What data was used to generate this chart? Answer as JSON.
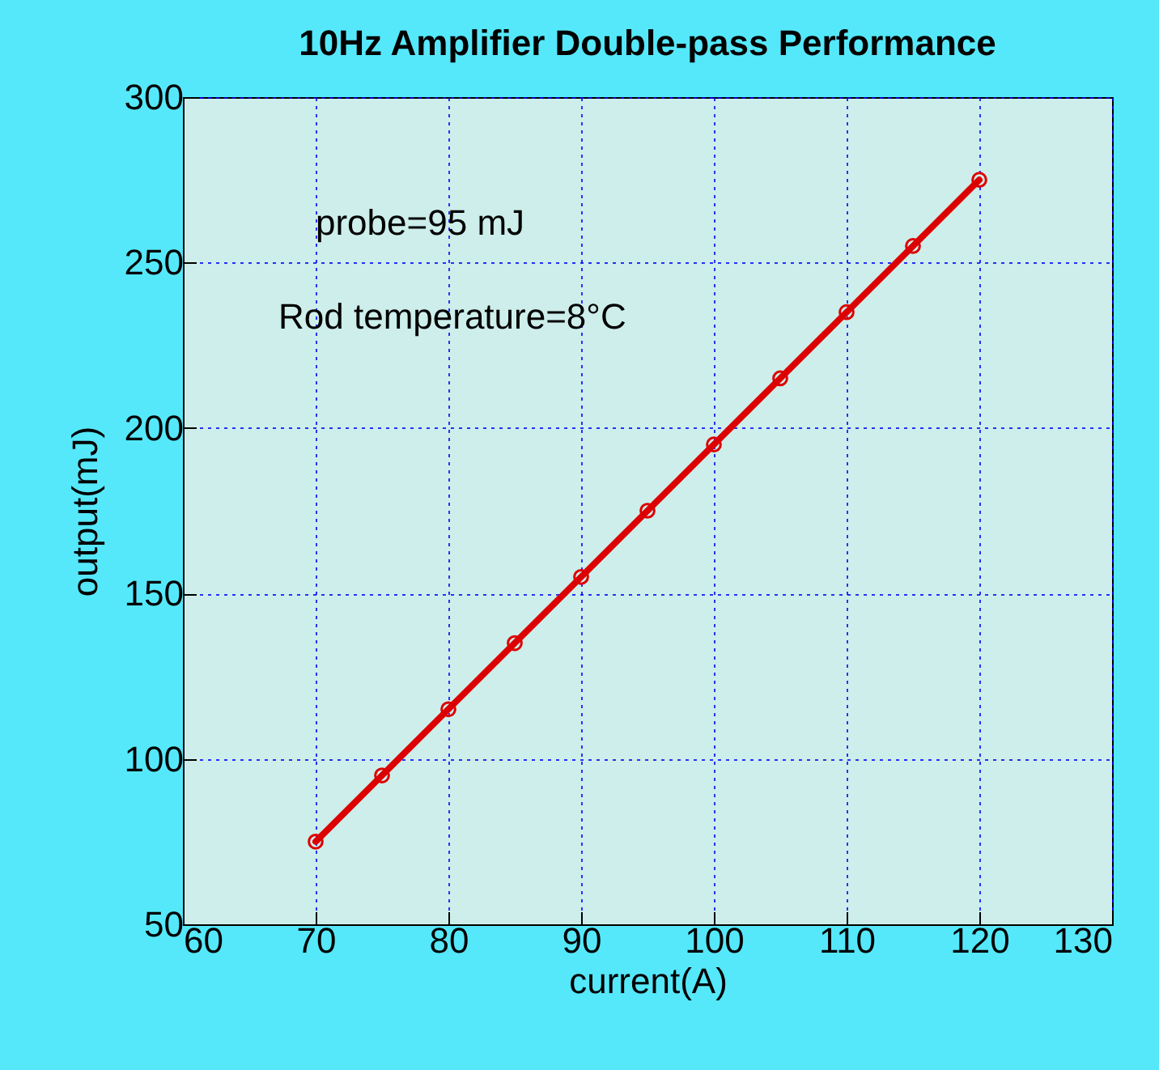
{
  "chart_data": {
    "type": "line",
    "title": "10Hz  Amplifier Double-pass Performance",
    "xlabel": "current(A)",
    "ylabel": "output(mJ)",
    "annotations": [
      "probe=95 mJ",
      "Rod temperature=8°C"
    ],
    "x": [
      70,
      75,
      80,
      85,
      90,
      95,
      100,
      105,
      110,
      115,
      120
    ],
    "series": [
      {
        "color": "#dd0000",
        "values": [
          75,
          95,
          115,
          135,
          155,
          175,
          195,
          215,
          235,
          255,
          275
        ]
      }
    ],
    "xlim": [
      60,
      130
    ],
    "xticks": [
      60,
      70,
      80,
      90,
      100,
      110,
      120,
      130
    ],
    "ylim": [
      50,
      300
    ],
    "yticks": [
      50,
      100,
      150,
      200,
      250,
      300
    ],
    "grid": true,
    "marker": "circle",
    "line_style": "solid"
  }
}
